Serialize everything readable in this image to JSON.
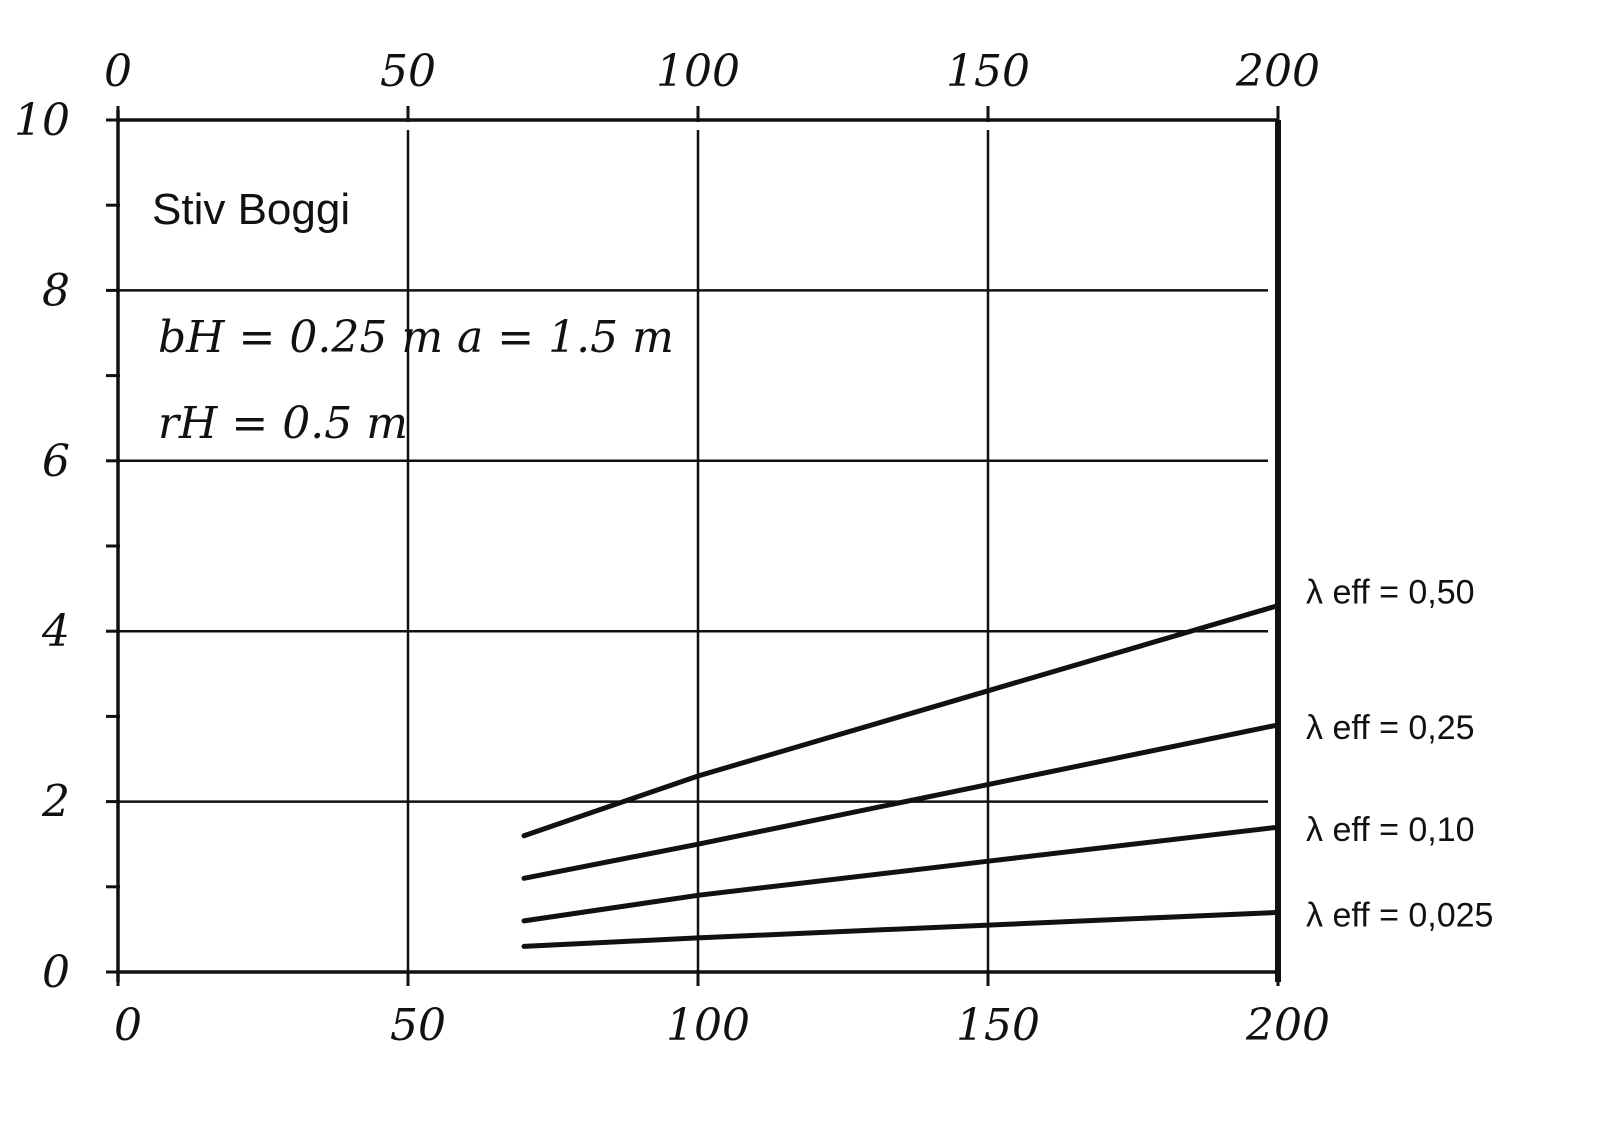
{
  "chart_data": {
    "type": "line",
    "title": "",
    "xlabel": "",
    "ylabel": "",
    "xlim": [
      0,
      200
    ],
    "ylim": [
      0,
      10
    ],
    "grid": true,
    "x_ticks": [
      "0",
      "50",
      "100",
      "150",
      "200"
    ],
    "y_ticks": [
      "0",
      "2",
      "4",
      "6",
      "8",
      "10"
    ],
    "annotations": {
      "title_text": "Stiv Boggi",
      "param_line_1": "bH = 0.25 m   a = 1.5 m",
      "param_line_2": "rH = 0.5 m"
    },
    "series": [
      {
        "name": "λ eff = 0,50",
        "points": [
          [
            70,
            1.6
          ],
          [
            100,
            2.3
          ],
          [
            150,
            3.3
          ],
          [
            200,
            4.3
          ]
        ]
      },
      {
        "name": "λ eff = 0,25",
        "points": [
          [
            70,
            1.1
          ],
          [
            100,
            1.5
          ],
          [
            150,
            2.2
          ],
          [
            200,
            2.9
          ]
        ]
      },
      {
        "name": "λ eff = 0,10",
        "points": [
          [
            70,
            0.6
          ],
          [
            100,
            0.9
          ],
          [
            150,
            1.3
          ],
          [
            200,
            1.7
          ]
        ]
      },
      {
        "name": "λ eff = 0,025",
        "points": [
          [
            70,
            0.3
          ],
          [
            100,
            0.4
          ],
          [
            150,
            0.55
          ],
          [
            200,
            0.7
          ]
        ]
      }
    ]
  }
}
